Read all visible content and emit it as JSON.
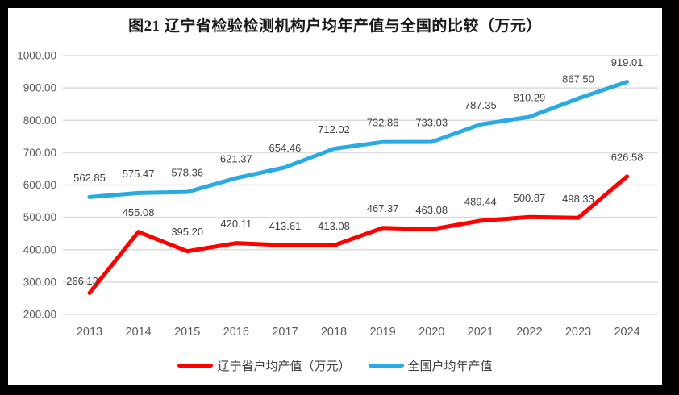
{
  "chart_data": {
    "type": "line",
    "title": "图21 辽宁省检验检测机构户均年产值与全国的比较（万元）",
    "categories": [
      "2013",
      "2014",
      "2015",
      "2016",
      "2017",
      "2018",
      "2019",
      "2020",
      "2021",
      "2022",
      "2023",
      "2024"
    ],
    "series": [
      {
        "name": "辽宁省户均产值（万元）",
        "color": "#fe0000",
        "values": [
          266.13,
          455.08,
          395.2,
          420.11,
          413.61,
          413.08,
          467.37,
          463.08,
          489.44,
          500.87,
          498.33,
          626.58
        ],
        "label_offsets": {
          "0": [
            -9,
            9
          ]
        }
      },
      {
        "name": "全国户均年产值",
        "color": "#29abe2",
        "values": [
          562.85,
          575.47,
          578.36,
          621.37,
          654.46,
          712.02,
          732.86,
          733.03,
          787.35,
          810.29,
          867.5,
          919.01
        ]
      }
    ],
    "ylim": [
      200,
      1000
    ],
    "ytick_step": 100,
    "grid": true,
    "legend_position": "bottom",
    "colors": {
      "axis_label": "#595959",
      "grid_line": "#dcdcdc",
      "data_label": "#3f3f3f",
      "frame_border": "#000000"
    }
  }
}
